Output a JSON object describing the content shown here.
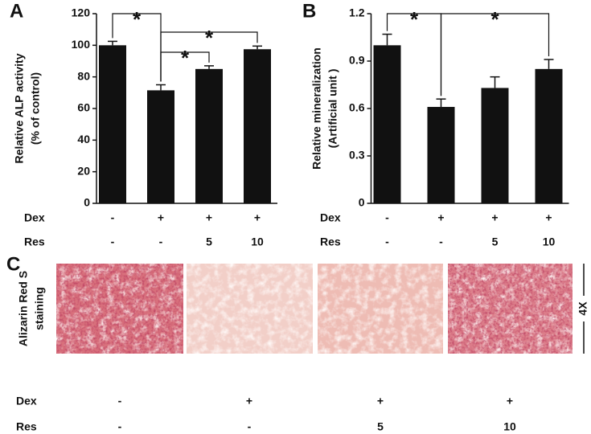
{
  "chart_data": [
    {
      "type": "bar",
      "panel": "A",
      "ylabel": [
        "Relative ALP activity",
        "(% of control)"
      ],
      "values": [
        100,
        71.5,
        85,
        97.5
      ],
      "errors": [
        2.5,
        3.5,
        2,
        2
      ],
      "color": "#111111",
      "ylim": [
        0,
        120
      ],
      "yticks": [
        0,
        20,
        40,
        60,
        80,
        100,
        120
      ],
      "conditions": [
        {
          "label": "Dex",
          "values": [
            "-",
            "+",
            "+",
            "+"
          ]
        },
        {
          "label": "Res",
          "values": [
            "-",
            "-",
            "5",
            "10"
          ]
        }
      ],
      "comparisons": [
        {
          "bars": [
            0,
            1
          ],
          "label": "*"
        },
        {
          "bars": [
            1,
            3
          ],
          "label": "*"
        },
        {
          "bars": [
            1,
            2
          ],
          "label": "*"
        }
      ]
    },
    {
      "type": "bar",
      "panel": "B",
      "ylabel": [
        "Relative mineralization",
        "(Artificial unit )"
      ],
      "values": [
        1.0,
        0.61,
        0.73,
        0.85
      ],
      "errors": [
        0.07,
        0.05,
        0.07,
        0.06
      ],
      "color": "#111111",
      "ylim": [
        0,
        1.2
      ],
      "yticks": [
        0,
        0.3,
        0.6,
        0.9,
        1.2
      ],
      "conditions": [
        {
          "label": "Dex",
          "values": [
            "-",
            "+",
            "+",
            "+"
          ]
        },
        {
          "label": "Res",
          "values": [
            "-",
            "-",
            "5",
            "10"
          ]
        }
      ],
      "comparisons": [
        {
          "bars": [
            0,
            1
          ],
          "label": "*"
        },
        {
          "bars": [
            1,
            3
          ],
          "label": "*"
        }
      ]
    }
  ],
  "staining": {
    "panel": "C",
    "ylabel": [
      "Alizarin Red S",
      "staining"
    ],
    "magnification": "4X",
    "conditions": [
      {
        "label": "Dex",
        "values": [
          "-",
          "+",
          "+",
          "+"
        ]
      },
      {
        "label": "Res",
        "values": [
          "-",
          "-",
          "5",
          "10"
        ]
      }
    ]
  }
}
